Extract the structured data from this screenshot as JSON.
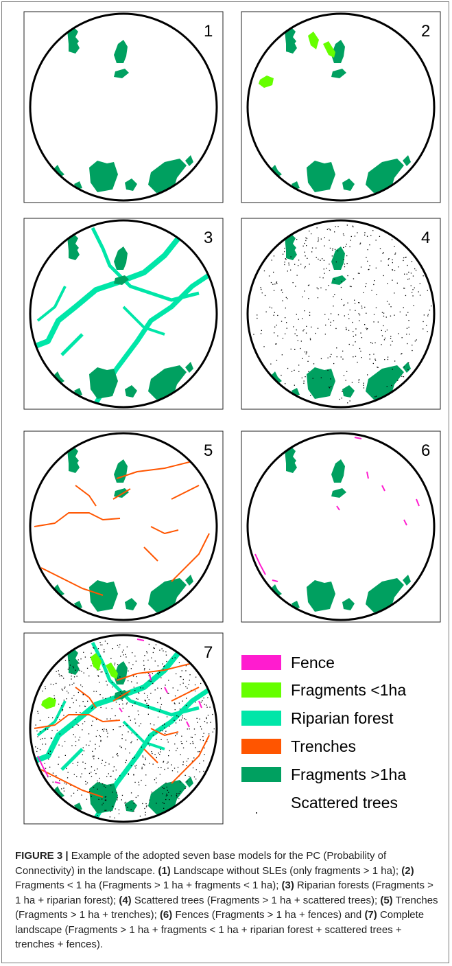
{
  "panels": [
    {
      "label": "1"
    },
    {
      "label": "2"
    },
    {
      "label": "3"
    },
    {
      "label": "4"
    },
    {
      "label": "5"
    },
    {
      "label": "6"
    },
    {
      "label": "7"
    }
  ],
  "legend": [
    {
      "label": "Fence",
      "color": "#ff1ccf"
    },
    {
      "label": "Fragments <1ha",
      "color": "#66ff00"
    },
    {
      "label": "Riparian forest",
      "color": "#00e6a8"
    },
    {
      "label": "Trenches",
      "color": "#ff5500"
    },
    {
      "label": "Fragments >1ha",
      "color": "#00a060"
    },
    {
      "label": "Scattered trees",
      "color": "#000000"
    }
  ],
  "caption": [
    "FIGURE 3 |",
    " Example of the adopted seven base models for the PC (Probability of Connectivity) in the landscape. ",
    "(1)",
    " Landscape without SLEs (only fragments > 1 ha); ",
    "(2)",
    " Fragments < 1 ha (Fragments > 1 ha + fragments < 1 ha); ",
    "(3)",
    " Riparian forests (Fragments > 1 ha + riparian forest); ",
    "(4)",
    " Scattered trees (Fragments > 1 ha + scattered trees); ",
    "(5)",
    " Trenches (Fragments > 1 ha + trenches); ",
    "(6)",
    " Fences (Fragments > 1 ha + fences) and ",
    "(7)",
    " Complete landscape (Fragments > 1 ha + fragments < 1 ha + riparian forest + scattered trees + trenches + fences)."
  ]
}
